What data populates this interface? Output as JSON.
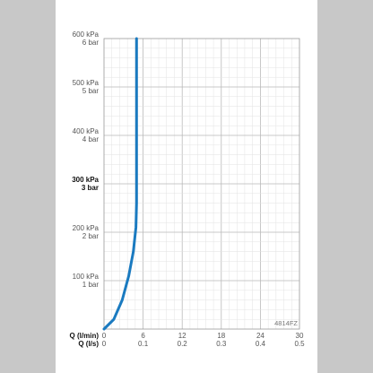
{
  "chart_data": {
    "type": "line",
    "code": "4814FZ",
    "y_ticks": [
      {
        "kpa": 100,
        "kpa_label": "100 kPa",
        "bar_label": "1 bar",
        "bold": false
      },
      {
        "kpa": 200,
        "kpa_label": "200 kPa",
        "bar_label": "2 bar",
        "bold": false
      },
      {
        "kpa": 300,
        "kpa_label": "300 kPa",
        "bar_label": "3 bar",
        "bold": true
      },
      {
        "kpa": 400,
        "kpa_label": "400 kPa",
        "bar_label": "4 bar",
        "bold": false
      },
      {
        "kpa": 500,
        "kpa_label": "500 kPa",
        "bar_label": "5 bar",
        "bold": false
      },
      {
        "kpa": 600,
        "kpa_label": "600 kPa",
        "bar_label": "6 bar",
        "bold": false
      }
    ],
    "x_axis_lmin": {
      "label": "Q (l/min)",
      "ticks": [
        "0",
        "6",
        "12",
        "18",
        "24",
        "30"
      ]
    },
    "x_axis_ls": {
      "label": "Q (l/s)",
      "ticks": [
        "0",
        "0.1",
        "0.2",
        "0.3",
        "0.4",
        "0.5"
      ]
    },
    "xlim": [
      0,
      30
    ],
    "ylim": [
      0,
      600
    ],
    "series": [
      {
        "color": "#1a7ac0",
        "x": [
          0,
          1.5,
          2.8,
          3.8,
          4.5,
          4.9,
          5.0,
          5.0,
          5.0
        ],
        "y": [
          0,
          20,
          60,
          110,
          160,
          210,
          260,
          400,
          600
        ]
      }
    ]
  }
}
